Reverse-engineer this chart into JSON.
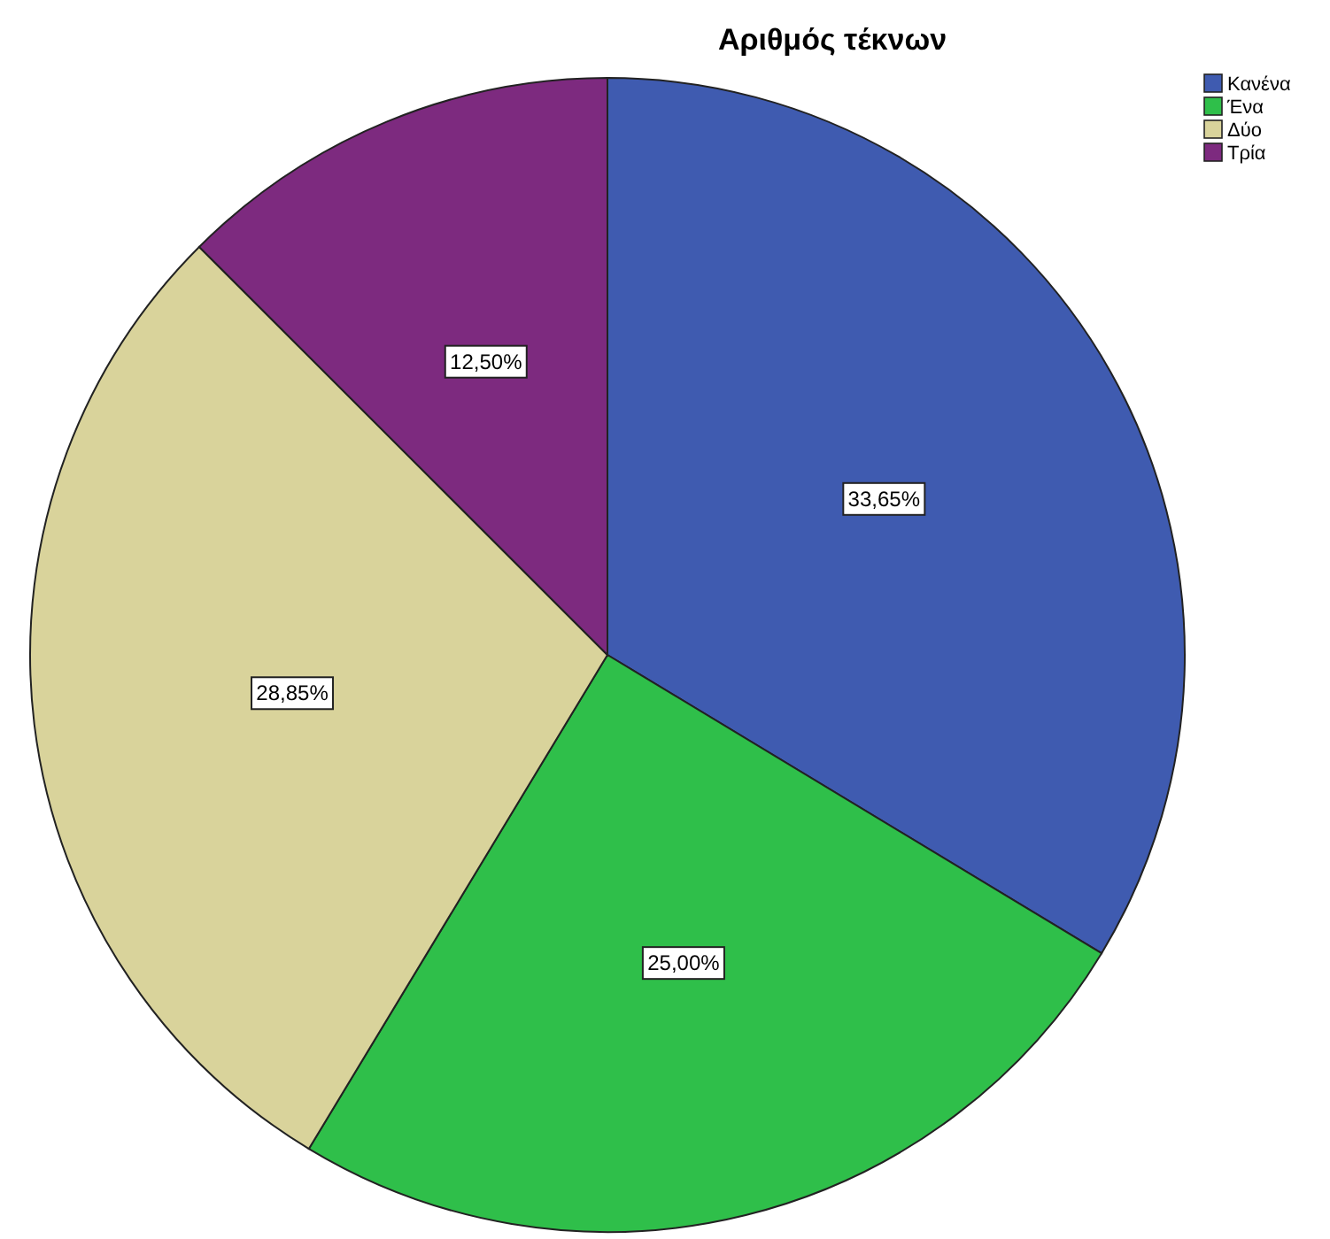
{
  "chart_data": {
    "type": "pie",
    "title": "Αριθμός τέκνων",
    "categories": [
      "Κανένα",
      "Ένα",
      "Δύο",
      "Τρία"
    ],
    "values": [
      33.65,
      25.0,
      28.85,
      12.5
    ],
    "colors": [
      "#3f5bb0",
      "#2fbf4a",
      "#d9d39b",
      "#7d2a7f"
    ],
    "value_labels": [
      "33,65%",
      "25,00%",
      "28,85%",
      "12,50%"
    ],
    "legend": "top right"
  }
}
